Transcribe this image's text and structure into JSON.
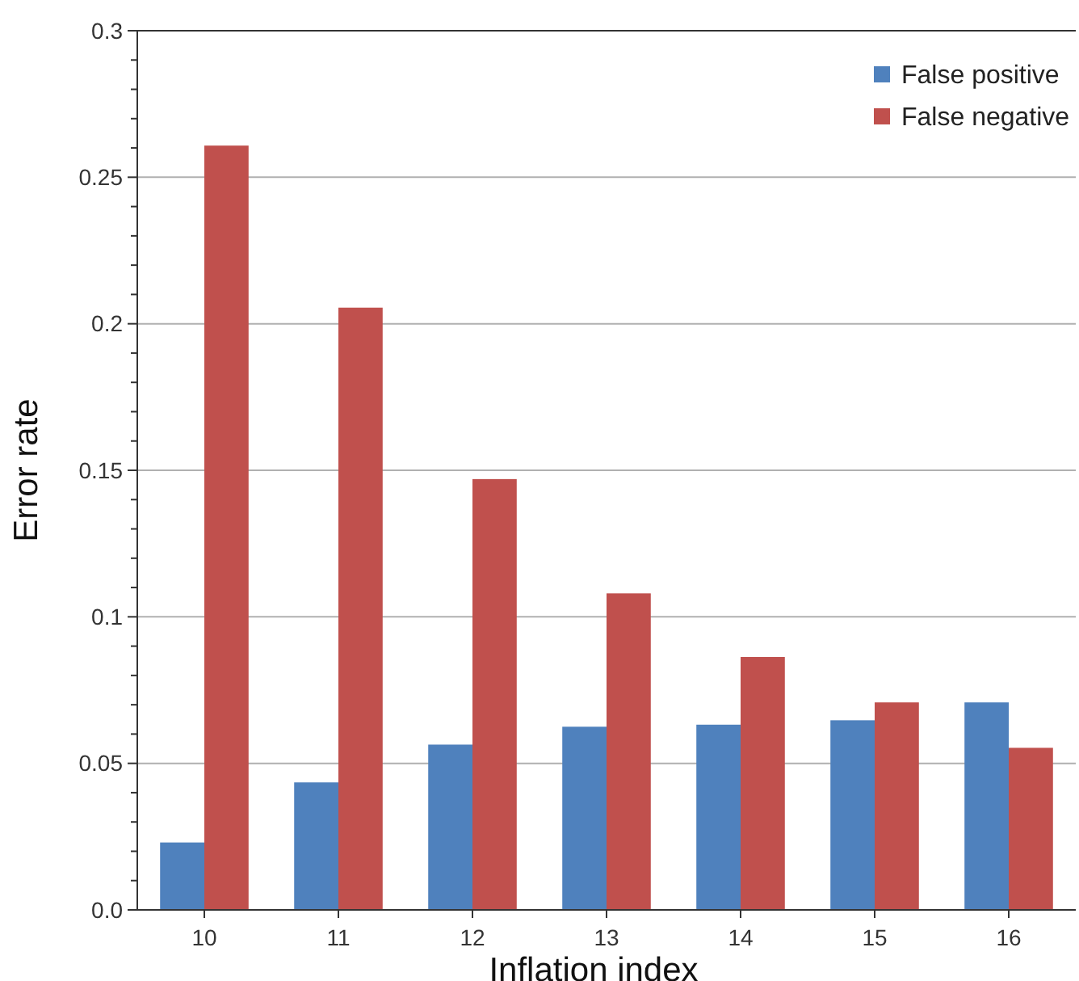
{
  "chart_data": {
    "type": "bar",
    "xlabel": "Inflation index",
    "ylabel": "Error rate",
    "categories": [
      "10",
      "11",
      "12",
      "13",
      "14",
      "15",
      "16"
    ],
    "series": [
      {
        "name": "False positive",
        "color": "#4f81bd",
        "values": [
          0.023,
          0.0435,
          0.0564,
          0.0625,
          0.0632,
          0.0647,
          0.0708
        ]
      },
      {
        "name": "False negative",
        "color": "#c0504d",
        "values": [
          0.2608,
          0.2055,
          0.147,
          0.108,
          0.0863,
          0.0708,
          0.0553
        ]
      }
    ],
    "ylim": [
      0,
      0.3
    ],
    "yticks": [
      {
        "value": 0,
        "label": "0.0"
      },
      {
        "value": 0.01,
        "label": null
      },
      {
        "value": 0.02,
        "label": null
      },
      {
        "value": 0.03,
        "label": null
      },
      {
        "value": 0.04,
        "label": null
      },
      0.05,
      {
        "value": 0.06,
        "label": null
      },
      {
        "value": 0.07,
        "label": null
      },
      {
        "value": 0.08,
        "label": null
      },
      {
        "value": 0.09,
        "label": null
      },
      0.1,
      {
        "value": 0.11,
        "label": null
      },
      {
        "value": 0.12,
        "label": null
      },
      {
        "value": 0.13,
        "label": null
      },
      {
        "value": 0.14,
        "label": null
      },
      0.15,
      {
        "value": 0.16,
        "label": null
      },
      {
        "value": 0.17,
        "label": null
      },
      {
        "value": 0.18,
        "label": null
      },
      {
        "value": 0.19,
        "label": null
      },
      0.2,
      {
        "value": 0.21,
        "label": null
      },
      {
        "value": 0.22,
        "label": null
      },
      {
        "value": 0.23,
        "label": null
      },
      {
        "value": 0.24,
        "label": null
      },
      0.25,
      {
        "value": 0.26,
        "label": null
      },
      {
        "value": 0.27,
        "label": null
      },
      {
        "value": 0.28,
        "label": null
      },
      {
        "value": 0.29,
        "label": null
      },
      0.3
    ],
    "grid": "y",
    "legend": "top right"
  }
}
